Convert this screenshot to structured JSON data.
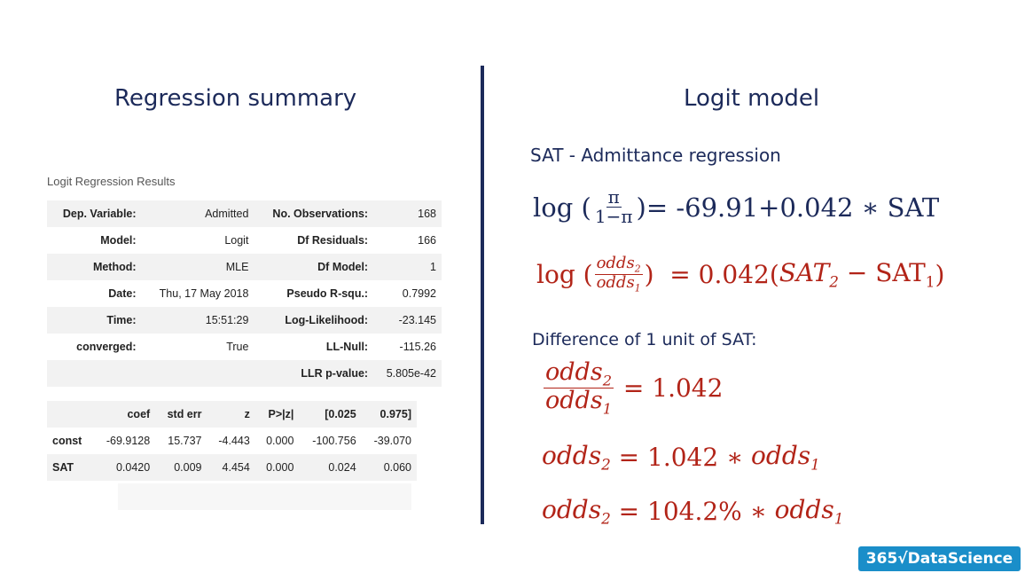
{
  "left": {
    "title": "Regression summary",
    "caption": "Logit Regression Results",
    "summary_rows": [
      {
        "k1": "Dep. Variable:",
        "v1": "Admitted",
        "k2": "No. Observations:",
        "v2": "168"
      },
      {
        "k1": "Model:",
        "v1": "Logit",
        "k2": "Df Residuals:",
        "v2": "166"
      },
      {
        "k1": "Method:",
        "v1": "MLE",
        "k2": "Df Model:",
        "v2": "1"
      },
      {
        "k1": "Date:",
        "v1": "Thu, 17 May 2018",
        "k2": "Pseudo R-squ.:",
        "v2": "0.7992"
      },
      {
        "k1": "Time:",
        "v1": "15:51:29",
        "k2": "Log-Likelihood:",
        "v2": "-23.145"
      },
      {
        "k1": "converged:",
        "v1": "True",
        "k2": "LL-Null:",
        "v2": "-115.26"
      },
      {
        "k1": "",
        "v1": "",
        "k2": "LLR p-value:",
        "v2": "5.805e-42"
      }
    ],
    "coef_header": [
      "",
      "coef",
      "std err",
      "z",
      "P>|z|",
      "[0.025",
      "0.975]"
    ],
    "coef_rows": [
      [
        "const",
        "-69.9128",
        "15.737",
        "-4.443",
        "0.000",
        "-100.756",
        "-39.070"
      ],
      [
        "SAT",
        "0.0420",
        "0.009",
        "4.454",
        "0.000",
        "0.024",
        "0.060"
      ]
    ]
  },
  "right": {
    "title": "Logit model",
    "subtitle": "SAT - Admittance regression",
    "eq1": {
      "log": "log (",
      "num": "π",
      "den": "1−π",
      "close": ")",
      "rhs": " = -69.91+0.042 ∗ SAT"
    },
    "eq2": {
      "log": "log (",
      "num": "odds",
      "num_sub": "2",
      "den": "odds",
      "den_sub": "1",
      "close": ")",
      "rhs_a": "  = 0.042(",
      "sat2": "SAT",
      "sat2_sub": "2",
      "minus": " − SAT",
      "sat1_sub": "1",
      "end": ")"
    },
    "difference_label": "Difference of 1 unit of SAT:",
    "eq3": {
      "num": "odds",
      "num_sub": "2",
      "den": "odds",
      "den_sub": "1",
      "rhs": " = 1.042"
    },
    "eq4": {
      "lhs": "odds",
      "lhs_sub": "2",
      "mid": " = 1.042 ∗ ",
      "rhs": "odds",
      "rhs_sub": "1"
    },
    "eq5": {
      "lhs": "odds",
      "lhs_sub": "2",
      "mid": " = 104.2% ∗ ",
      "rhs": "odds",
      "rhs_sub": "1"
    }
  },
  "logo": {
    "text": "365√DataScience"
  }
}
